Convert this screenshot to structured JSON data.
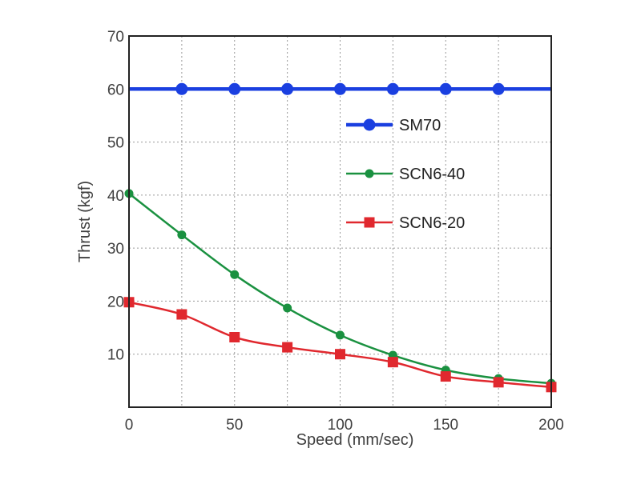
{
  "chart_data": {
    "type": "line",
    "title": "",
    "xlabel": "Speed (mm/sec)",
    "ylabel": "Thrust (kgf)",
    "xlim": [
      0,
      200
    ],
    "ylim": [
      0,
      70
    ],
    "xticks": [
      0,
      50,
      100,
      150,
      200
    ],
    "yticks": [
      10,
      20,
      30,
      40,
      50,
      60,
      70
    ],
    "xgrid": [
      25,
      50,
      75,
      100,
      125,
      150,
      175
    ],
    "ygrid": [
      10,
      20,
      30,
      40,
      50,
      60
    ],
    "grid": true,
    "legend_position": "center-right",
    "series": [
      {
        "name": "SM70",
        "color": "#1a3fe0",
        "marker": "circle",
        "x": [
          25,
          50,
          75,
          100,
          125,
          150,
          175
        ],
        "y": [
          60,
          60,
          60,
          60,
          60,
          60,
          60
        ],
        "line_x": [
          0,
          200
        ],
        "line_y": [
          60,
          60
        ]
      },
      {
        "name": "SCN6-40",
        "color": "#1a9140",
        "marker": "circle",
        "x": [
          0,
          25,
          50,
          75,
          100,
          125,
          150,
          175,
          200
        ],
        "y": [
          40.3,
          32.5,
          25,
          18.7,
          13.6,
          9.8,
          7.0,
          5.4,
          4.5
        ]
      },
      {
        "name": "SCN6-20",
        "color": "#e0282e",
        "marker": "square",
        "x": [
          0,
          25,
          50,
          75,
          100,
          125,
          150,
          175,
          200
        ],
        "y": [
          19.8,
          17.5,
          13.2,
          11.3,
          10.0,
          8.5,
          5.8,
          4.7,
          3.8
        ]
      }
    ]
  }
}
